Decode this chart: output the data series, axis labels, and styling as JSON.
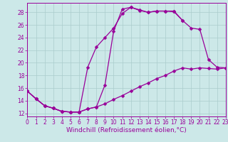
{
  "background_color": "#cce8e8",
  "grid_color": "#aacccc",
  "line_color": "#990099",
  "markersize": 2.5,
  "linewidth": 0.9,
  "xlabel": "Windchill (Refroidissement éolien,°C)",
  "xlabel_fontsize": 6.5,
  "tick_fontsize": 5.5,
  "xlim": [
    0,
    23
  ],
  "ylim": [
    11.5,
    29.5
  ],
  "yticks": [
    12,
    14,
    16,
    18,
    20,
    22,
    24,
    26,
    28
  ],
  "xticks": [
    0,
    1,
    2,
    3,
    4,
    5,
    6,
    7,
    8,
    9,
    10,
    11,
    12,
    13,
    14,
    15,
    16,
    17,
    18,
    19,
    20,
    21,
    22,
    23
  ],
  "line1_x": [
    0,
    1,
    2,
    3,
    4,
    5,
    6,
    7,
    8,
    9,
    10,
    11,
    12,
    13,
    14,
    15,
    16,
    17,
    18
  ],
  "line1_y": [
    15.5,
    14.3,
    13.2,
    12.8,
    12.3,
    12.2,
    12.2,
    12.7,
    13.0,
    16.5,
    25.0,
    28.5,
    28.8,
    28.3,
    28.0,
    28.2,
    28.2,
    28.1,
    26.7
  ],
  "line2_x": [
    0,
    1,
    2,
    3,
    4,
    5,
    6,
    7,
    8,
    9,
    10,
    11,
    12,
    13,
    14,
    15,
    16,
    17,
    18,
    19,
    20,
    21,
    22,
    23
  ],
  "line2_y": [
    15.5,
    14.3,
    13.2,
    12.8,
    12.3,
    12.2,
    12.2,
    12.7,
    13.0,
    13.5,
    14.2,
    14.8,
    15.5,
    16.2,
    16.8,
    17.5,
    18.0,
    18.7,
    19.2,
    19.0,
    19.2,
    19.1,
    19.0,
    19.2
  ],
  "line3_x": [
    0,
    1,
    2,
    3,
    4,
    5,
    6,
    7,
    8,
    9,
    10,
    11,
    12,
    13,
    14,
    15,
    16,
    17,
    18,
    19,
    20,
    21,
    22,
    23
  ],
  "line3_y": [
    15.5,
    14.3,
    13.2,
    12.8,
    12.3,
    12.2,
    12.2,
    19.3,
    22.5,
    24.0,
    25.5,
    27.8,
    28.8,
    28.4,
    28.0,
    28.2,
    28.2,
    28.2,
    26.7,
    25.5,
    25.3,
    20.5,
    19.3,
    19.2
  ]
}
